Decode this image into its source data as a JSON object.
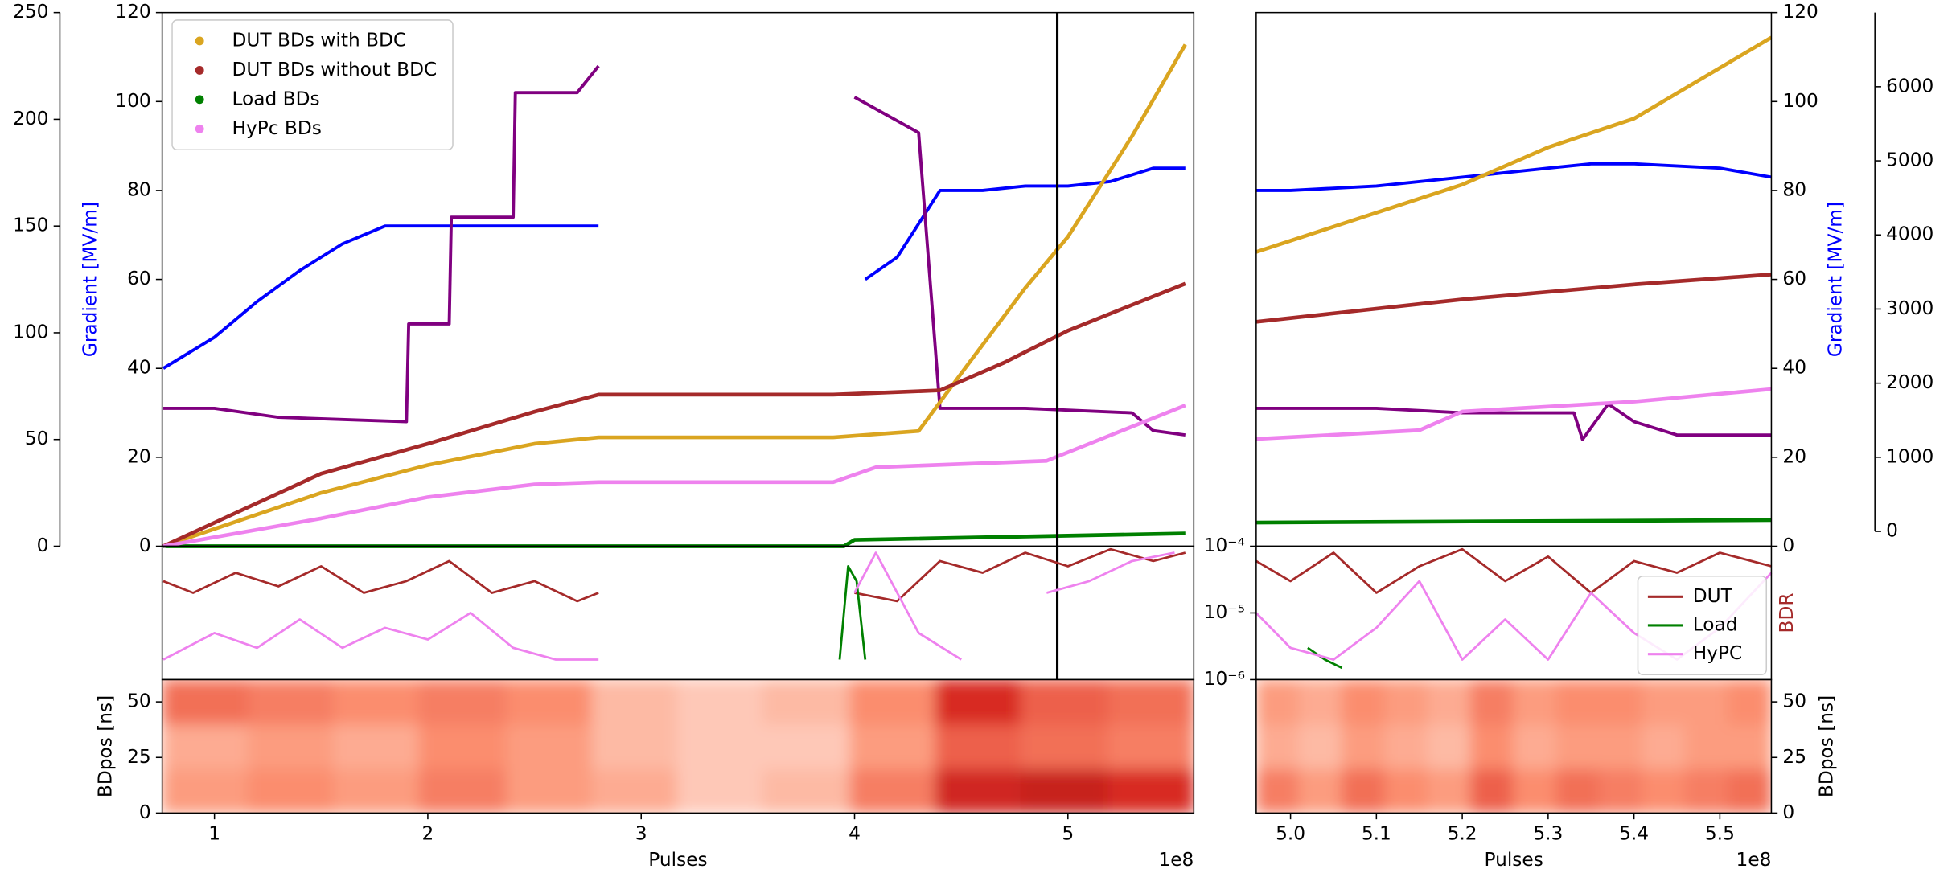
{
  "chart_data": [
    {
      "type": "line",
      "xlim": [
        0.755,
        5.59
      ],
      "ylim": [
        0,
        120
      ],
      "yticks": [
        0,
        20,
        40,
        60,
        80,
        100,
        120
      ],
      "y2lim": [
        0,
        250
      ],
      "y2ticks": [
        0,
        50,
        100,
        150,
        200,
        250
      ],
      "ylabel": "Gradient [MV/m]",
      "ylabel_color": "#0000ff",
      "legend": "upper left",
      "vline": {
        "x": 4.95,
        "color": "#000000"
      },
      "series": [
        {
          "name": "DUT BDs with BDC",
          "color": "#daa520",
          "axis": "y2",
          "x": [
            0.76,
            1.5,
            2.0,
            2.5,
            2.8,
            3.9,
            4.3,
            4.5,
            4.8,
            5.0,
            5.3,
            5.55
          ],
          "values": [
            0,
            25,
            38,
            48,
            51,
            51,
            54,
            81,
            121,
            145,
            192,
            235
          ]
        },
        {
          "name": "DUT BDs without BDC",
          "color": "#a52a2a",
          "axis": "y2",
          "x": [
            0.76,
            1.5,
            2.0,
            2.5,
            2.8,
            3.9,
            4.4,
            4.7,
            5.0,
            5.3,
            5.55
          ],
          "values": [
            0,
            34,
            48,
            63,
            71,
            71,
            73,
            86,
            101,
            113,
            123
          ]
        },
        {
          "name": "Load BDs",
          "color": "#008000",
          "axis": "y2",
          "x": [
            0.76,
            3.95,
            4.0,
            5.55
          ],
          "values": [
            0,
            0,
            3,
            6
          ]
        },
        {
          "name": "HyPc BDs",
          "color": "#ee82ee",
          "axis": "y2",
          "x": [
            0.76,
            1.5,
            2.0,
            2.5,
            2.8,
            3.9,
            4.1,
            4.9,
            5.1,
            5.55
          ],
          "values": [
            0,
            13,
            23,
            29,
            30,
            30,
            37,
            40,
            48,
            66
          ]
        }
      ],
      "extra_series": [
        {
          "color": "#0000ff",
          "x": [
            0.76,
            1.0,
            1.2,
            1.4,
            1.6,
            1.8,
            2.0,
            2.2,
            2.4,
            2.6,
            2.8,
            3.0,
            4.05,
            4.2,
            4.4,
            4.6,
            4.8,
            5.0,
            5.2,
            5.4,
            5.55
          ],
          "values": [
            40,
            47,
            55,
            62,
            68,
            72,
            72,
            72,
            72,
            72,
            72,
            null,
            60,
            65,
            80,
            80,
            81,
            81,
            82,
            85,
            85
          ]
        },
        {
          "color": "#800080",
          "x": [
            0.76,
            1.0,
            1.3,
            1.9,
            1.91,
            2.1,
            2.11,
            2.4,
            2.41,
            2.7,
            2.8,
            3.0,
            4.0,
            4.3,
            4.4,
            4.8,
            5.3,
            5.4,
            5.55
          ],
          "values": [
            31,
            31,
            29,
            28,
            50,
            50,
            74,
            74,
            102,
            102,
            108,
            null,
            101,
            93,
            31,
            31,
            30,
            26,
            25
          ]
        }
      ]
    },
    {
      "type": "line",
      "xlim": [
        4.96,
        5.56
      ],
      "ylim": [
        0,
        120
      ],
      "yticks": [
        0,
        20,
        40,
        60,
        80,
        100,
        120
      ],
      "y2lim": [
        -200,
        7000
      ],
      "y2ticks": [
        0,
        1000,
        2000,
        3000,
        4000,
        5000,
        6000
      ],
      "ylabel": "Gradient [MV/m]",
      "ylabel_color": "#0000ff",
      "series": [
        {
          "color": "#daa520",
          "axis": "y2",
          "x": [
            4.96,
            5.2,
            5.3,
            5.4,
            5.56
          ],
          "values": [
            3770,
            4678,
            5182,
            5570,
            6663
          ]
        },
        {
          "color": "#a52a2a",
          "axis": "y2",
          "x": [
            4.96,
            5.2,
            5.4,
            5.56
          ],
          "values": [
            2828,
            3130,
            3332,
            3467
          ]
        },
        {
          "color": "#008000",
          "axis": "y2",
          "x": [
            4.96,
            5.56
          ],
          "values": [
            120,
            153
          ]
        },
        {
          "color": "#ee82ee",
          "axis": "y2",
          "x": [
            4.96,
            5.15,
            5.2,
            5.4,
            5.56
          ],
          "values": [
            1246,
            1364,
            1617,
            1751,
            1919
          ]
        }
      ],
      "extra_series": [
        {
          "color": "#0000ff",
          "x": [
            4.96,
            5.0,
            5.1,
            5.2,
            5.25,
            5.3,
            5.35,
            5.4,
            5.5,
            5.56
          ],
          "values": [
            80,
            80,
            81,
            83,
            84,
            85,
            86,
            86,
            85,
            83
          ]
        },
        {
          "color": "#800080",
          "x": [
            4.96,
            5.1,
            5.2,
            5.33,
            5.34,
            5.37,
            5.4,
            5.45,
            5.56
          ],
          "values": [
            31,
            31,
            30,
            30,
            24,
            32,
            28,
            25,
            25
          ]
        }
      ]
    },
    {
      "type": "line",
      "xlim": [
        0.755,
        5.59
      ],
      "ylim": [
        1e-06,
        0.0001
      ],
      "log": true,
      "series": [
        {
          "color": "#a52a2a",
          "x": [
            0.76,
            0.9,
            1.1,
            1.3,
            1.5,
            1.7,
            1.9,
            2.1,
            2.3,
            2.5,
            2.7,
            2.8,
            3.0,
            4.0,
            4.2,
            4.4,
            4.6,
            4.8,
            5.0,
            5.2,
            5.4,
            5.55
          ],
          "values": [
            3e-05,
            2e-05,
            4e-05,
            2.5e-05,
            5e-05,
            2e-05,
            3e-05,
            6e-05,
            2e-05,
            3e-05,
            1.5e-05,
            2e-05,
            null,
            2e-05,
            1.5e-05,
            6e-05,
            4e-05,
            8e-05,
            5e-05,
            9e-05,
            6e-05,
            8e-05
          ]
        },
        {
          "color": "#008000",
          "x": [
            3.93,
            3.97,
            4.01,
            4.05
          ],
          "values": [
            2e-06,
            5e-05,
            3e-05,
            2e-06
          ]
        },
        {
          "color": "#ee82ee",
          "x": [
            0.76,
            1.0,
            1.2,
            1.4,
            1.6,
            1.8,
            2.0,
            2.2,
            2.4,
            2.6,
            2.8,
            3.0,
            4.0,
            4.1,
            4.3,
            4.5,
            4.7,
            4.9,
            5.1,
            5.3,
            5.5
          ],
          "values": [
            2e-06,
            5e-06,
            3e-06,
            8e-06,
            3e-06,
            6e-06,
            4e-06,
            1e-05,
            3e-06,
            2e-06,
            2e-06,
            null,
            2e-05,
            8e-05,
            5e-06,
            2e-06,
            null,
            2e-05,
            3e-05,
            6e-05,
            8e-05
          ]
        }
      ]
    },
    {
      "type": "line",
      "xlim": [
        4.96,
        5.56
      ],
      "ylim": [
        1e-06,
        0.0001
      ],
      "log": true,
      "yticks": [
        {
          "value": 0.0001,
          "label": "10⁻⁴"
        },
        {
          "value": 1e-05,
          "label": "10⁻⁵"
        },
        {
          "value": 1e-06,
          "label": "10⁻⁶"
        }
      ],
      "ylabel": "BDR",
      "ylabel_color": "#a52a2a",
      "legend": "lower right",
      "series": [
        {
          "name": "DUT",
          "color": "#a52a2a",
          "x": [
            4.96,
            5.0,
            5.05,
            5.1,
            5.15,
            5.2,
            5.25,
            5.3,
            5.35,
            5.4,
            5.45,
            5.5,
            5.56
          ],
          "values": [
            6e-05,
            3e-05,
            8e-05,
            2e-05,
            5e-05,
            9e-05,
            3e-05,
            7e-05,
            2e-05,
            6e-05,
            4e-05,
            8e-05,
            5e-05
          ]
        },
        {
          "name": "Load",
          "color": "#008000",
          "x": [
            5.02,
            5.04,
            5.06
          ],
          "values": [
            3e-06,
            2e-06,
            1.5e-06
          ]
        },
        {
          "name": "HyPC",
          "color": "#ee82ee",
          "x": [
            4.96,
            5.0,
            5.05,
            5.1,
            5.15,
            5.2,
            5.25,
            5.3,
            5.35,
            5.4,
            5.45,
            5.5,
            5.56
          ],
          "values": [
            1e-05,
            3e-06,
            2e-06,
            6e-06,
            3e-05,
            2e-06,
            8e-06,
            2e-06,
            2e-05,
            5e-06,
            2e-06,
            6e-06,
            4e-05
          ]
        }
      ]
    },
    {
      "type": "heatmap",
      "xlim": [
        0.755,
        5.59
      ],
      "xticks": [
        1,
        2,
        3,
        4,
        5
      ],
      "xlabel": "Pulses",
      "x_offset": "1e8",
      "ylim": [
        0,
        60
      ],
      "yticks": [
        0,
        25,
        50
      ],
      "ylabel": "BDpos [ns]",
      "colormap": [
        "#fff5f0",
        "#fc9272",
        "#de2d26",
        "#a50f15"
      ],
      "zlim": [
        0,
        1
      ],
      "x_edges": [
        0.755,
        1.16,
        1.56,
        1.96,
        2.37,
        2.77,
        3.17,
        3.57,
        3.98,
        4.38,
        4.78,
        5.19,
        5.59
      ],
      "y_edges": [
        0,
        20,
        40,
        60
      ],
      "z": [
        [
          0.3,
          0.35,
          0.3,
          0.4,
          0.3,
          0.25,
          0.15,
          0.2,
          0.4,
          0.75,
          0.8,
          0.7
        ],
        [
          0.25,
          0.3,
          0.25,
          0.35,
          0.3,
          0.2,
          0.15,
          0.15,
          0.3,
          0.5,
          0.45,
          0.4
        ],
        [
          0.45,
          0.4,
          0.35,
          0.4,
          0.35,
          0.2,
          0.15,
          0.2,
          0.35,
          0.7,
          0.5,
          0.45
        ]
      ]
    },
    {
      "type": "heatmap",
      "xlim": [
        4.96,
        5.56
      ],
      "xticks": [
        {
          "value": 5,
          "label": "5.0"
        },
        5.1,
        5.2,
        5.3,
        5.4,
        5.5
      ],
      "xlabel": "Pulses",
      "x_offset": "1e8",
      "ylim": [
        0,
        60
      ],
      "yticks": [
        0,
        25,
        50
      ],
      "ylabel": "BDpos [ns]",
      "colormap": [
        "#fff5f0",
        "#fc9272",
        "#de2d26",
        "#a50f15"
      ],
      "zlim": [
        0,
        1
      ],
      "x_edges": [
        4.96,
        5.01,
        5.06,
        5.11,
        5.16,
        5.21,
        5.26,
        5.31,
        5.36,
        5.41,
        5.46,
        5.51,
        5.56
      ],
      "y_edges": [
        0,
        20,
        40,
        60
      ],
      "z": [
        [
          0.4,
          0.3,
          0.45,
          0.35,
          0.3,
          0.5,
          0.35,
          0.45,
          0.4,
          0.35,
          0.4,
          0.45
        ],
        [
          0.25,
          0.2,
          0.3,
          0.25,
          0.2,
          0.35,
          0.25,
          0.3,
          0.3,
          0.25,
          0.3,
          0.3
        ],
        [
          0.3,
          0.25,
          0.35,
          0.3,
          0.25,
          0.4,
          0.3,
          0.35,
          0.35,
          0.3,
          0.3,
          0.35
        ]
      ]
    }
  ]
}
